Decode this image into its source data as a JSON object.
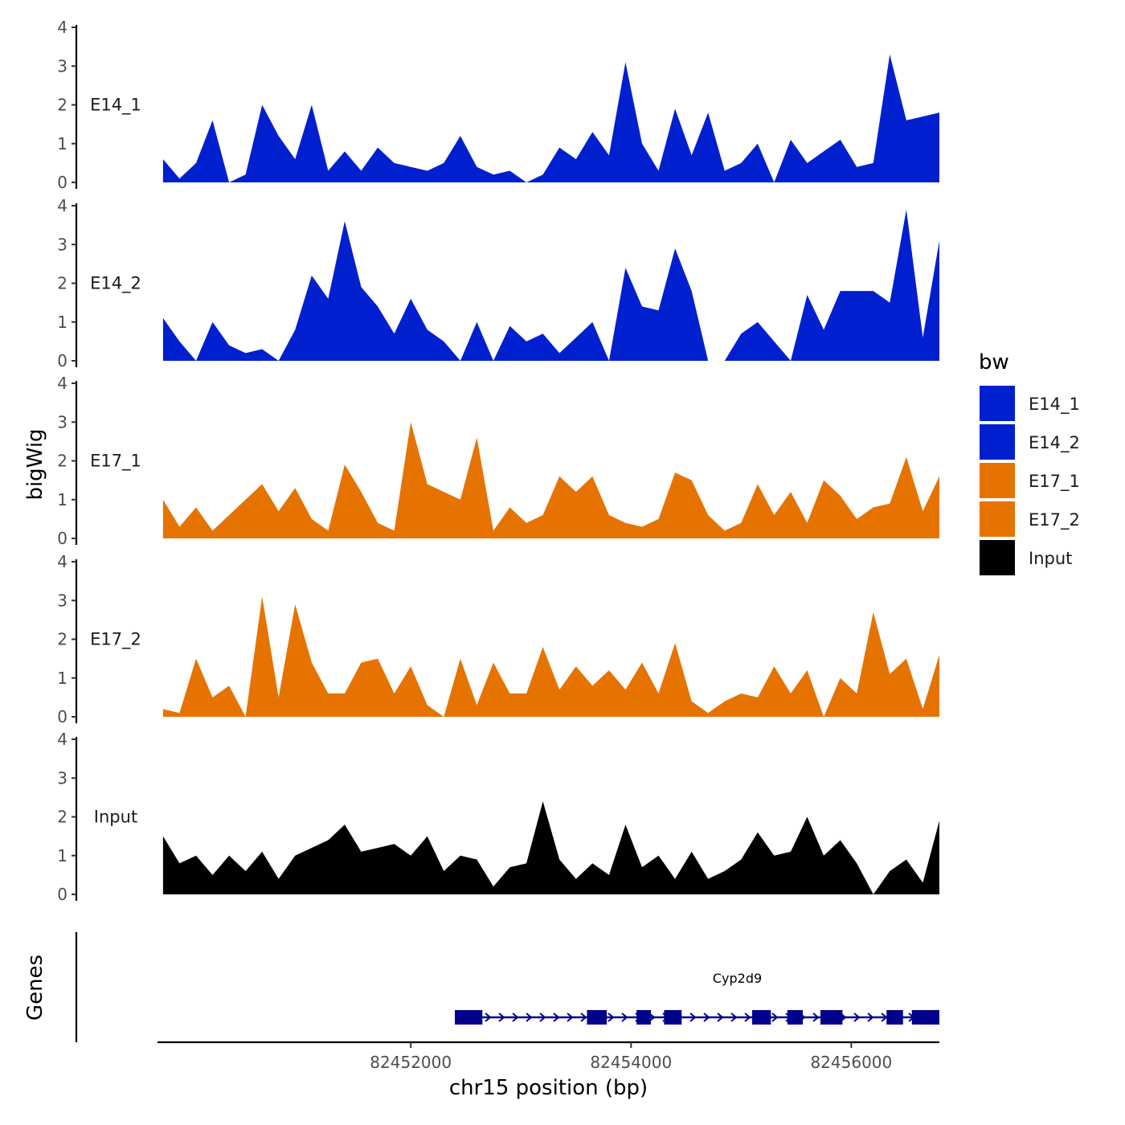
{
  "chart_data": {
    "type": "area",
    "subtype": "genome-coverage-tracks",
    "xlabel": "chr15 position (bp)",
    "ylabel": "bigWig",
    "genes_label": "Genes",
    "xlim": [
      82449700,
      82456800
    ],
    "x_ticks": [
      82452000,
      82454000,
      82456000
    ],
    "x_tick_labels": [
      "82452000",
      "82454000",
      "82456000"
    ],
    "ylim": [
      0,
      4
    ],
    "y_ticks": [
      0,
      1,
      2,
      3,
      4
    ],
    "y_tick_labels": [
      "0",
      "1",
      "2",
      "3",
      "4"
    ],
    "x": [
      82449750,
      82449900,
      82450050,
      82450200,
      82450350,
      82450500,
      82450650,
      82450800,
      82450950,
      82451100,
      82451250,
      82451400,
      82451550,
      82451700,
      82451850,
      82452000,
      82452150,
      82452300,
      82452450,
      82452600,
      82452750,
      82452900,
      82453050,
      82453200,
      82453350,
      82453500,
      82453650,
      82453800,
      82453950,
      82454100,
      82454250,
      82454400,
      82454550,
      82454700,
      82454850,
      82455000,
      82455150,
      82455300,
      82455450,
      82455600,
      82455750,
      82455900,
      82456050,
      82456200,
      82456350,
      82456500,
      82456650,
      82456800
    ],
    "series": [
      {
        "name": "E14_1",
        "color": "#0020D0",
        "values": [
          0.6,
          0.1,
          0.5,
          1.6,
          0.0,
          0.2,
          2.0,
          1.2,
          0.6,
          2.0,
          0.3,
          0.8,
          0.3,
          0.9,
          0.5,
          0.4,
          0.3,
          0.5,
          1.2,
          0.4,
          0.2,
          0.3,
          0.0,
          0.2,
          0.9,
          0.6,
          1.3,
          0.7,
          3.1,
          1.0,
          0.3,
          1.9,
          0.7,
          1.8,
          0.3,
          0.5,
          1.0,
          0.0,
          1.1,
          0.5,
          0.8,
          1.1,
          0.4,
          0.5,
          3.3,
          1.6,
          1.7,
          1.8
        ]
      },
      {
        "name": "E14_2",
        "color": "#0020D0",
        "values": [
          1.1,
          0.5,
          0.0,
          1.0,
          0.4,
          0.2,
          0.3,
          0.0,
          0.8,
          2.2,
          1.6,
          3.6,
          1.9,
          1.4,
          0.7,
          1.6,
          0.8,
          0.5,
          0.0,
          1.0,
          0.0,
          0.9,
          0.5,
          0.7,
          0.2,
          0.6,
          1.0,
          0.0,
          2.4,
          1.4,
          1.3,
          2.9,
          1.8,
          0.0,
          0.0,
          0.7,
          1.0,
          0.5,
          0.0,
          1.7,
          0.8,
          1.8,
          1.8,
          1.8,
          1.5,
          3.9,
          0.6,
          3.1
        ]
      },
      {
        "name": "E17_1",
        "color": "#E67300",
        "values": [
          1.0,
          0.3,
          0.8,
          0.2,
          0.6,
          1.0,
          1.4,
          0.7,
          1.3,
          0.5,
          0.2,
          1.9,
          1.2,
          0.4,
          0.2,
          3.0,
          1.4,
          1.2,
          1.0,
          2.6,
          0.2,
          0.8,
          0.4,
          0.6,
          1.6,
          1.2,
          1.6,
          0.6,
          0.4,
          0.3,
          0.5,
          1.7,
          1.5,
          0.6,
          0.2,
          0.4,
          1.4,
          0.6,
          1.2,
          0.4,
          1.5,
          1.1,
          0.5,
          0.8,
          0.9,
          2.1,
          0.7,
          1.6
        ]
      },
      {
        "name": "E17_2",
        "color": "#E67300",
        "values": [
          0.2,
          0.1,
          1.5,
          0.5,
          0.8,
          0.0,
          3.1,
          0.5,
          2.9,
          1.4,
          0.6,
          0.6,
          1.4,
          1.5,
          0.6,
          1.3,
          0.3,
          0.0,
          1.5,
          0.3,
          1.4,
          0.6,
          0.6,
          1.8,
          0.7,
          1.3,
          0.8,
          1.2,
          0.7,
          1.4,
          0.6,
          1.9,
          0.4,
          0.1,
          0.4,
          0.6,
          0.5,
          1.3,
          0.6,
          1.2,
          0.0,
          1.0,
          0.6,
          2.7,
          1.1,
          1.5,
          0.2,
          1.6
        ]
      },
      {
        "name": "Input",
        "color": "#000000",
        "values": [
          1.5,
          0.8,
          1.0,
          0.5,
          1.0,
          0.6,
          1.1,
          0.4,
          1.0,
          1.2,
          1.4,
          1.8,
          1.1,
          1.2,
          1.3,
          1.0,
          1.5,
          0.6,
          1.0,
          0.9,
          0.2,
          0.7,
          0.8,
          2.4,
          0.9,
          0.4,
          0.8,
          0.5,
          1.8,
          0.7,
          1.0,
          0.4,
          1.1,
          0.4,
          0.6,
          0.9,
          1.6,
          1.0,
          1.1,
          2.0,
          1.0,
          1.4,
          0.8,
          0.0,
          0.6,
          0.9,
          0.3,
          1.9
        ]
      }
    ],
    "genes": [
      {
        "name": "Cyp2d9",
        "start": 82452400,
        "end": 82456800,
        "strand": "+",
        "exons": [
          [
            82452400,
            82452650
          ],
          [
            82453600,
            82453780
          ],
          [
            82454050,
            82454180
          ],
          [
            82454300,
            82454460
          ],
          [
            82455100,
            82455270
          ],
          [
            82455420,
            82455560
          ],
          [
            82455720,
            82455920
          ],
          [
            82456320,
            82456470
          ],
          [
            82456550,
            82456800
          ]
        ]
      }
    ],
    "legend": {
      "title": "bw",
      "position": "right",
      "entries": [
        {
          "label": "E14_1",
          "color": "#0020D0"
        },
        {
          "label": "E14_2",
          "color": "#0020D0"
        },
        {
          "label": "E17_1",
          "color": "#E67300"
        },
        {
          "label": "E17_2",
          "color": "#E67300"
        },
        {
          "label": "Input",
          "color": "#000000"
        }
      ]
    }
  }
}
